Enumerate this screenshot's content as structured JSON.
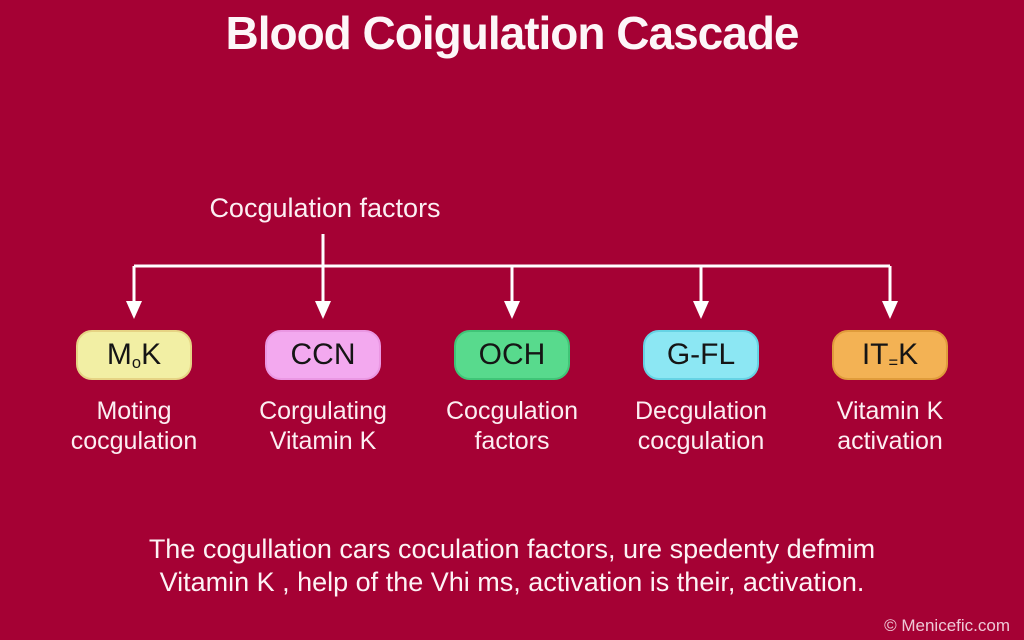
{
  "title": "Blood Coigulation Cascade",
  "root_label": "Cocgulation factors",
  "nodes": [
    {
      "code_pre": "M",
      "code_sub": "o",
      "code_post": "K",
      "fill": "#f2efa4",
      "border": "#e6d484",
      "label_line1": "Moting",
      "label_line2": "cocgulation"
    },
    {
      "code_pre": "CCN",
      "code_sub": "",
      "code_post": "",
      "fill": "#f3a9ef",
      "border": "#ea97e3",
      "label_line1": "Corgulating",
      "label_line2": "Vitamin K"
    },
    {
      "code_pre": "OCH",
      "code_sub": "",
      "code_post": "",
      "fill": "#58da8d",
      "border": "#40c577",
      "label_line1": "Cocgulation",
      "label_line2": "factors"
    },
    {
      "code_pre": "G-FL",
      "code_sub": "",
      "code_post": "",
      "fill": "#8ce7f3",
      "border": "#66d3e4",
      "label_line1": "Decgulation",
      "label_line2": "cocgulation"
    },
    {
      "code_pre": "IT",
      "code_sub": "=",
      "code_post": "K",
      "fill": "#f3b254",
      "border": "#e09c3b",
      "label_line1": "Vitamin K",
      "label_line2": "activation"
    }
  ],
  "caption_line1": "The cogullation cars coculation factors, ure spedenty defmim",
  "caption_line2": "Vitamin K , help of the Vhi ms, activation is their, activation.",
  "watermark": "© Menicefic.com",
  "colors": {
    "background": "#a50134",
    "line": "#ffffff",
    "title_text": "#fdf6f8",
    "label_text": "#fceef2"
  }
}
